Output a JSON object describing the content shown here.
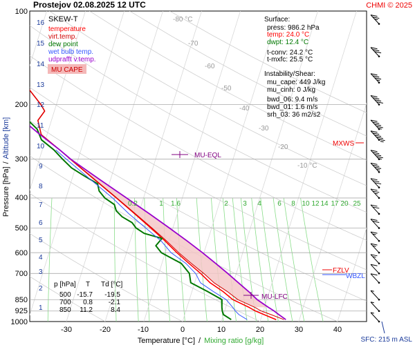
{
  "header": {
    "title": "Prostejov    02.08.2025 12 UTC",
    "credit": "CHMI © 2025"
  },
  "chart_data": {
    "type": "line",
    "subtype": "skew-t log-p sounding",
    "xlabel": "Temperature [°C]",
    "xlabel_sep": "/",
    "xlabel2": "Mixing ratio [g/kg]",
    "ylabel": "Pressure [hPa]",
    "ylabel_sep": "/",
    "ylabel2": "Altitude [km]",
    "xlim": [
      -35,
      45
    ],
    "pressure_range": [
      1000,
      100
    ],
    "x_ticks": [
      "-30",
      "-20",
      "-10",
      "0",
      "10",
      "20",
      "30",
      "40"
    ],
    "pressure_ticks": [
      "100",
      "200",
      "300",
      "400",
      "500",
      "600",
      "700",
      "850",
      "925",
      "1000"
    ],
    "altitude_ticks": [
      "1",
      "2",
      "3",
      "4",
      "5",
      "6",
      "7",
      "8",
      "9",
      "10",
      "11",
      "12",
      "13",
      "14",
      "15",
      "16"
    ],
    "mixing_ratio_labels": [
      "0.2",
      "1",
      "1.6",
      "2",
      "3",
      "4",
      "6",
      "8",
      "10",
      "12",
      "14",
      "17",
      "20",
      "25"
    ],
    "isotherm_labels": [
      "-80 °C",
      "-70",
      "-60",
      "-50",
      "-40",
      "-30",
      "-20",
      "-10 °C"
    ],
    "legend": {
      "title": "SKEW-T",
      "items": [
        {
          "label": "temperature",
          "color": "#ff0000"
        },
        {
          "label": "virt.temp.",
          "color": "#d00000"
        },
        {
          "label": "dew point",
          "color": "#007700"
        },
        {
          "label": "wet bulb temp.",
          "color": "#3355ff"
        },
        {
          "label": "udprafft v.temp.",
          "color": "#9900cc"
        }
      ],
      "mu_cape": "MU CAPE"
    },
    "surface": {
      "title": "Surface:",
      "press": "press: 986.2 hPa",
      "temp": "temp: 24.0 °C",
      "dwpt": "dwpt: 12.4 °C",
      "t_conv": "t-conv: 24.2 °C",
      "t_mxfc": "t-mxfc: 25.5 °C"
    },
    "instability": {
      "title": "Instability/Shear:",
      "mu_cape": "mu_cape: 449 J/kg",
      "mu_cinh": "mu_cinh: 0 J/kg",
      "bwd_06": "bwd_06: 9.4 m/s",
      "bwd_01": "bwd_01: 1.6 m/s",
      "srh_03": "srh_03: 36 m2/s2"
    },
    "annotations": {
      "mu_eql": "MU-EQL",
      "mu_lfc": "MU-LFC",
      "mxws": "MXWS",
      "fzlv": "FZLV",
      "wbzl": "WBZL",
      "sfc": "SFC: 215 m ASL"
    },
    "table": {
      "headers": [
        "p [hPa]",
        "T",
        "Td [°C]"
      ],
      "rows": [
        [
          "500",
          "-15.7",
          "-19.5"
        ],
        [
          "700",
          "0.8",
          "-2.1"
        ],
        [
          "850",
          "11.2",
          "8.4"
        ]
      ]
    },
    "series": [
      {
        "name": "temperature",
        "color": "#ff0000",
        "points": [
          [
            986,
            24.0
          ],
          [
            950,
            20.5
          ],
          [
            925,
            18.0
          ],
          [
            900,
            16.0
          ],
          [
            850,
            11.2
          ],
          [
            800,
            8.0
          ],
          [
            750,
            4.0
          ],
          [
            700,
            0.8
          ],
          [
            650,
            -3.0
          ],
          [
            600,
            -7.0
          ],
          [
            550,
            -11.0
          ],
          [
            500,
            -15.7
          ],
          [
            450,
            -21.0
          ],
          [
            400,
            -27.0
          ],
          [
            350,
            -34.0
          ],
          [
            300,
            -42.0
          ],
          [
            280,
            -45.5
          ],
          [
            250,
            -51.5
          ],
          [
            225,
            -53.5
          ],
          [
            210,
            -52.5
          ],
          [
            200,
            -54.0
          ],
          [
            180,
            -58.0
          ],
          [
            160,
            -62.0
          ],
          [
            140,
            -66.5
          ],
          [
            125,
            -70.0
          ],
          [
            110,
            -74.0
          ],
          [
            100,
            -76.0
          ]
        ]
      },
      {
        "name": "virt.temp.",
        "color": "#d00000",
        "points": [
          [
            986,
            26.0
          ],
          [
            950,
            22.3
          ],
          [
            925,
            19.5
          ],
          [
            900,
            17.5
          ],
          [
            850,
            12.5
          ],
          [
            800,
            9.1
          ],
          [
            750,
            5.0
          ],
          [
            700,
            1.6
          ],
          [
            650,
            -2.4
          ],
          [
            600,
            -6.5
          ],
          [
            550,
            -10.6
          ],
          [
            500,
            -15.4
          ],
          [
            450,
            -20.8
          ],
          [
            400,
            -26.9
          ],
          [
            350,
            -33.9
          ],
          [
            300,
            -41.9
          ],
          [
            280,
            -45.5
          ],
          [
            250,
            -51.5
          ],
          [
            225,
            -53.5
          ],
          [
            210,
            -52.5
          ],
          [
            200,
            -54.0
          ],
          [
            180,
            -58.0
          ],
          [
            160,
            -62.0
          ],
          [
            140,
            -66.5
          ],
          [
            125,
            -70.0
          ],
          [
            110,
            -74.0
          ],
          [
            100,
            -76.0
          ]
        ]
      },
      {
        "name": "dew point",
        "color": "#007700",
        "points": [
          [
            986,
            12.4
          ],
          [
            950,
            10.0
          ],
          [
            925,
            9.4
          ],
          [
            900,
            9.0
          ],
          [
            850,
            8.4
          ],
          [
            800,
            4.0
          ],
          [
            750,
            -1.0
          ],
          [
            700,
            -2.1
          ],
          [
            650,
            -5.0
          ],
          [
            600,
            -11.0
          ],
          [
            570,
            -13.0
          ],
          [
            540,
            -12.0
          ],
          [
            520,
            -17.0
          ],
          [
            500,
            -19.5
          ],
          [
            480,
            -21.0
          ],
          [
            460,
            -24.0
          ],
          [
            440,
            -26.0
          ],
          [
            420,
            -27.0
          ],
          [
            400,
            -30.0
          ],
          [
            380,
            -32.0
          ],
          [
            360,
            -33.0
          ],
          [
            340,
            -37.0
          ],
          [
            320,
            -41.0
          ],
          [
            300,
            -44.0
          ],
          [
            280,
            -47.0
          ],
          [
            260,
            -51.0
          ],
          [
            240,
            -53.0
          ],
          [
            225,
            -56.0
          ],
          [
            212,
            -70.0
          ],
          [
            205,
            -68.0
          ],
          [
            195,
            -63.0
          ],
          [
            180,
            -67.0
          ],
          [
            160,
            -70.0
          ],
          [
            140,
            -74.0
          ],
          [
            125,
            -80.0
          ],
          [
            112,
            -84.0
          ],
          [
            100,
            -87.0
          ]
        ]
      },
      {
        "name": "wet bulb temp.",
        "color": "#3355ff",
        "points": [
          [
            986,
            16.5
          ],
          [
            950,
            14.0
          ],
          [
            925,
            12.8
          ],
          [
            900,
            11.8
          ],
          [
            850,
            9.5
          ],
          [
            800,
            5.5
          ],
          [
            750,
            1.5
          ],
          [
            700,
            -0.5
          ],
          [
            650,
            -3.8
          ],
          [
            600,
            -8.5
          ],
          [
            550,
            -12.0
          ],
          [
            500,
            -17.0
          ],
          [
            450,
            -22.5
          ],
          [
            400,
            -28.0
          ],
          [
            350,
            -35.0
          ],
          [
            300,
            -43.0
          ],
          [
            280,
            -46.5
          ]
        ]
      },
      {
        "name": "udprafft v.temp.",
        "color": "#9900cc",
        "points": [
          [
            986,
            26.5
          ],
          [
            950,
            24.3
          ],
          [
            925,
            22.8
          ],
          [
            900,
            21.0
          ],
          [
            850,
            17.5
          ],
          [
            800,
            14.6
          ],
          [
            750,
            11.3
          ],
          [
            700,
            7.8
          ],
          [
            650,
            3.9
          ],
          [
            600,
            -0.4
          ],
          [
            550,
            -5.3
          ],
          [
            500,
            -10.9
          ],
          [
            450,
            -17.2
          ],
          [
            400,
            -24.4
          ],
          [
            350,
            -32.6
          ],
          [
            300,
            -41.9
          ],
          [
            280,
            -45.5
          ],
          [
            250,
            -51.8
          ],
          [
            200,
            -63.5
          ],
          [
            150,
            -79.0
          ],
          [
            125,
            -89.0
          ],
          [
            110,
            -96.0
          ],
          [
            100,
            -101.0
          ]
        ]
      }
    ],
    "wind_barbs": [
      {
        "p": 110,
        "speed_kt": 25
      },
      {
        "p": 140,
        "speed_kt": 30
      },
      {
        "p": 170,
        "speed_kt": 35
      },
      {
        "p": 200,
        "speed_kt": 40
      },
      {
        "p": 240,
        "speed_kt": 45
      },
      {
        "p": 260,
        "speed_kt": 55
      },
      {
        "p": 300,
        "speed_kt": 45
      },
      {
        "p": 330,
        "speed_kt": 35
      },
      {
        "p": 370,
        "speed_kt": 30
      },
      {
        "p": 400,
        "speed_kt": 25
      },
      {
        "p": 450,
        "speed_kt": 20
      },
      {
        "p": 500,
        "speed_kt": 20
      },
      {
        "p": 550,
        "speed_kt": 15
      },
      {
        "p": 600,
        "speed_kt": 15
      },
      {
        "p": 650,
        "speed_kt": 15
      },
      {
        "p": 700,
        "speed_kt": 10
      },
      {
        "p": 750,
        "speed_kt": 10
      },
      {
        "p": 850,
        "speed_kt": 5
      },
      {
        "p": 925,
        "speed_kt": 5
      },
      {
        "p": 1000,
        "speed_kt": 5
      }
    ]
  }
}
